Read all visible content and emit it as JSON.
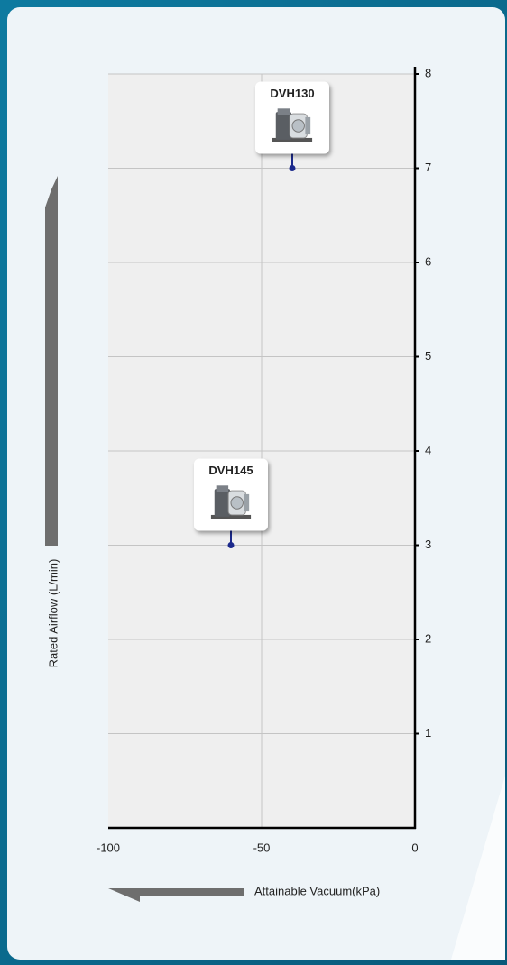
{
  "chart_data": {
    "type": "scatter",
    "x_label": "Attainable Vacuum(kPa)",
    "y_label": "Rated Airflow (L/min)",
    "series": [
      {
        "name": "DVH130",
        "color": "#1c2a8c",
        "x": [
          -40
        ],
        "values": [
          7
        ]
      },
      {
        "name": "DVH145",
        "color": "#1c2a8c",
        "x": [
          -60
        ],
        "values": [
          3
        ]
      }
    ],
    "xlim": [
      -100,
      0
    ],
    "xticks": [
      -100,
      -50,
      0
    ],
    "ylim": [
      0,
      8
    ],
    "yticks": [
      1,
      2,
      3,
      4,
      5,
      6,
      7,
      8
    ],
    "grid": true
  }
}
